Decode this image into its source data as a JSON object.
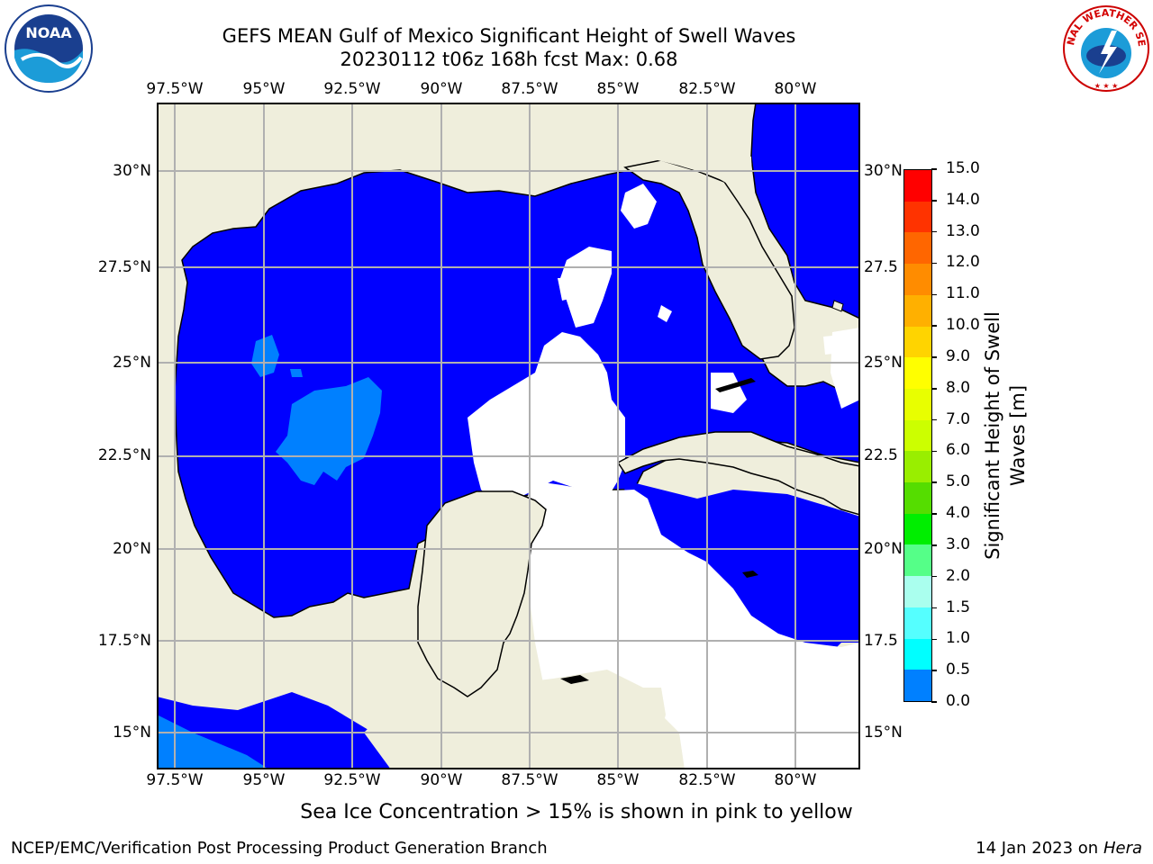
{
  "title": {
    "line1": "GEFS MEAN Gulf of Mexico Significant Height of Swell Waves",
    "line2": "20230112 t06z 168h fcst   Max: 0.68"
  },
  "map": {
    "lon_labels": [
      "97.5°W",
      "95°W",
      "92.5°W",
      "90°W",
      "87.5°W",
      "85°W",
      "82.5°W",
      "80°W"
    ],
    "lat_labels_left": [
      "30°N",
      "27.5°N",
      "25°N",
      "22.5°N",
      "20°N",
      "17.5°N",
      "15°N"
    ],
    "lat_labels_right": [
      "30°N",
      "27.5",
      "25°N",
      "22.5",
      "20°N",
      "17.5",
      "15°N"
    ],
    "land_color": "#efeedc",
    "ocean_class_0_color": "#0000ff",
    "ocean_class_1_color": "#0080ff",
    "no_data_color": "#ffffff"
  },
  "colorbar": {
    "label": "Significant Height of Swell Waves [m]",
    "ticks": [
      "15.0",
      "14.0",
      "13.0",
      "12.0",
      "11.0",
      "10.0",
      "9.0",
      "8.0",
      "7.0",
      "6.0",
      "5.0",
      "4.0",
      "3.0",
      "2.0",
      "1.5",
      "1.0",
      "0.5",
      "0.0"
    ],
    "colors": [
      "#ff0000",
      "#ff3300",
      "#ff6600",
      "#ff8c00",
      "#ffb000",
      "#ffd400",
      "#ffff00",
      "#e8ff00",
      "#ccff00",
      "#99ee00",
      "#55dd00",
      "#00ee00",
      "#55ff88",
      "#aaffee",
      "#55ffff",
      "#00ffff",
      "#0080ff",
      "#0000ff"
    ]
  },
  "notes": {
    "sea_ice": "Sea Ice Concentration > 15% is shown in pink to yellow",
    "footer_left": "NCEP/EMC/Verification Post Processing Product Generation Branch",
    "footer_right_prefix": "14 Jan 2023 on ",
    "footer_right_host": "Hera"
  },
  "logos": {
    "left": "noaa-logo",
    "right": "nws-logo",
    "nws_text": "NATIONAL WEATHER SERVICE"
  }
}
